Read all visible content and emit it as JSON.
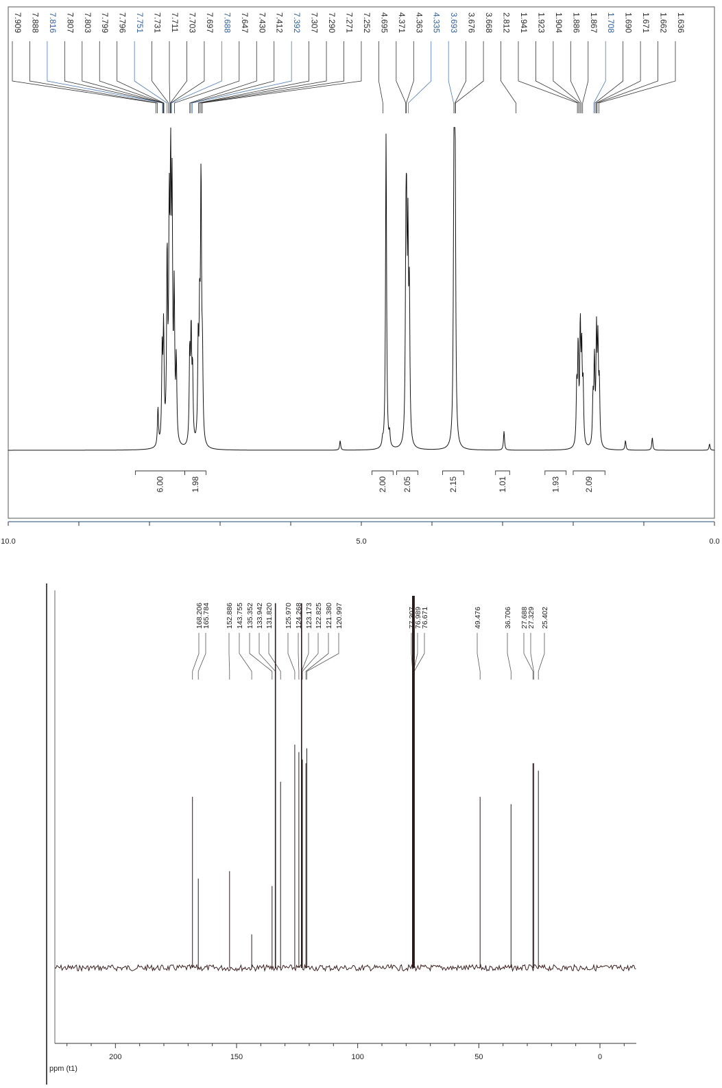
{
  "chart_data": [
    {
      "type": "line",
      "spectrum": "1H NMR",
      "x_ticks": [
        "10.0",
        "5.0",
        "0.0"
      ],
      "xlim": [
        10.0,
        0.0
      ],
      "peak_labels": [
        "7.909",
        "7.888",
        "7.816",
        "7.807",
        "7.803",
        "7.799",
        "7.796",
        "7.751",
        "7.731",
        "7.711",
        "7.703",
        "7.697",
        "7.688",
        "7.647",
        "7.430",
        "7.412",
        "7.392",
        "7.307",
        "7.290",
        "7.271",
        "7.252",
        "4.695",
        "4.371",
        "4.363",
        "4.335",
        "3.693",
        "3.676",
        "3.668",
        "2.812",
        "1.941",
        "1.923",
        "1.904",
        "1.886",
        "1.867",
        "1.708",
        "1.690",
        "1.671",
        "1.662",
        "1.636"
      ],
      "integrals": [
        {
          "value": "6.00",
          "from": 8.2,
          "to": 7.5
        },
        {
          "value": "1.98",
          "from": 7.5,
          "to": 7.2
        },
        {
          "value": "2.00",
          "from": 4.85,
          "to": 4.55
        },
        {
          "value": "2.05",
          "from": 4.5,
          "to": 4.2
        },
        {
          "value": "2.15",
          "from": 3.85,
          "to": 3.55
        },
        {
          "value": "1.01",
          "from": 3.1,
          "to": 2.9
        },
        {
          "value": "1.93",
          "from": 2.4,
          "to": 2.1
        },
        {
          "value": "2.09",
          "from": 2.0,
          "to": 1.55
        }
      ],
      "peaks": [
        {
          "ppm": 7.88,
          "h": 0.12
        },
        {
          "ppm": 7.82,
          "h": 0.28
        },
        {
          "ppm": 7.8,
          "h": 0.35
        },
        {
          "ppm": 7.75,
          "h": 0.58
        },
        {
          "ppm": 7.72,
          "h": 0.66
        },
        {
          "ppm": 7.7,
          "h": 0.78
        },
        {
          "ppm": 7.68,
          "h": 0.72
        },
        {
          "ppm": 7.65,
          "h": 0.45
        },
        {
          "ppm": 7.62,
          "h": 0.25
        },
        {
          "ppm": 7.43,
          "h": 0.28
        },
        {
          "ppm": 7.41,
          "h": 0.34
        },
        {
          "ppm": 7.39,
          "h": 0.22
        },
        {
          "ppm": 7.31,
          "h": 0.3
        },
        {
          "ppm": 7.29,
          "h": 0.36
        },
        {
          "ppm": 7.27,
          "h": 0.82
        },
        {
          "ppm": 7.25,
          "h": 0.24
        },
        {
          "ppm": 5.3,
          "h": 0.03
        },
        {
          "ppm": 4.7,
          "h": 0.02
        },
        {
          "ppm": 4.65,
          "h": 1.0
        },
        {
          "ppm": 4.6,
          "h": 0.04
        },
        {
          "ppm": 4.37,
          "h": 0.48
        },
        {
          "ppm": 4.36,
          "h": 0.56
        },
        {
          "ppm": 4.34,
          "h": 0.6
        },
        {
          "ppm": 4.32,
          "h": 0.44
        },
        {
          "ppm": 3.69,
          "h": 0.56
        },
        {
          "ppm": 3.68,
          "h": 0.92
        },
        {
          "ppm": 3.67,
          "h": 0.5
        },
        {
          "ppm": 2.98,
          "h": 0.06
        },
        {
          "ppm": 1.95,
          "h": 0.18
        },
        {
          "ppm": 1.93,
          "h": 0.3
        },
        {
          "ppm": 1.9,
          "h": 0.36
        },
        {
          "ppm": 1.88,
          "h": 0.28
        },
        {
          "ppm": 1.86,
          "h": 0.18
        },
        {
          "ppm": 1.72,
          "h": 0.14
        },
        {
          "ppm": 1.7,
          "h": 0.26
        },
        {
          "ppm": 1.67,
          "h": 0.34
        },
        {
          "ppm": 1.65,
          "h": 0.3
        },
        {
          "ppm": 1.63,
          "h": 0.18
        },
        {
          "ppm": 1.26,
          "h": 0.03
        },
        {
          "ppm": 0.88,
          "h": 0.04
        },
        {
          "ppm": 0.07,
          "h": 0.02
        }
      ]
    },
    {
      "type": "line",
      "spectrum": "13C NMR",
      "xlabel": "ppm (t1)",
      "x_ticks": [
        "200",
        "150",
        "100",
        "50",
        "0"
      ],
      "xlim": [
        225,
        -15
      ],
      "peak_labels": [
        "168.206",
        "165.784",
        "152.886",
        "143.755",
        "135.352",
        "133.942",
        "131.820",
        "125.970",
        "124.268",
        "123.173",
        "122.825",
        "121.380",
        "120.997",
        "77.307",
        "76.989",
        "76.671",
        "49.476",
        "36.706",
        "27.688",
        "27.329",
        "25.402"
      ],
      "peaks": [
        {
          "ppm": 168.206,
          "h": 0.46
        },
        {
          "ppm": 165.784,
          "h": 0.24
        },
        {
          "ppm": 152.886,
          "h": 0.26
        },
        {
          "ppm": 143.755,
          "h": 0.09
        },
        {
          "ppm": 135.352,
          "h": 0.22
        },
        {
          "ppm": 133.942,
          "h": 0.98
        },
        {
          "ppm": 131.82,
          "h": 0.5
        },
        {
          "ppm": 125.97,
          "h": 0.6
        },
        {
          "ppm": 124.268,
          "h": 0.58
        },
        {
          "ppm": 123.173,
          "h": 0.98
        },
        {
          "ppm": 122.825,
          "h": 0.56
        },
        {
          "ppm": 121.38,
          "h": 0.55
        },
        {
          "ppm": 120.997,
          "h": 0.59
        },
        {
          "ppm": 77.307,
          "h": 1.0
        },
        {
          "ppm": 76.989,
          "h": 1.0
        },
        {
          "ppm": 76.671,
          "h": 1.0
        },
        {
          "ppm": 49.476,
          "h": 0.46
        },
        {
          "ppm": 36.706,
          "h": 0.44
        },
        {
          "ppm": 27.688,
          "h": 0.55
        },
        {
          "ppm": 27.329,
          "h": 0.55
        },
        {
          "ppm": 25.402,
          "h": 0.53
        }
      ]
    }
  ]
}
